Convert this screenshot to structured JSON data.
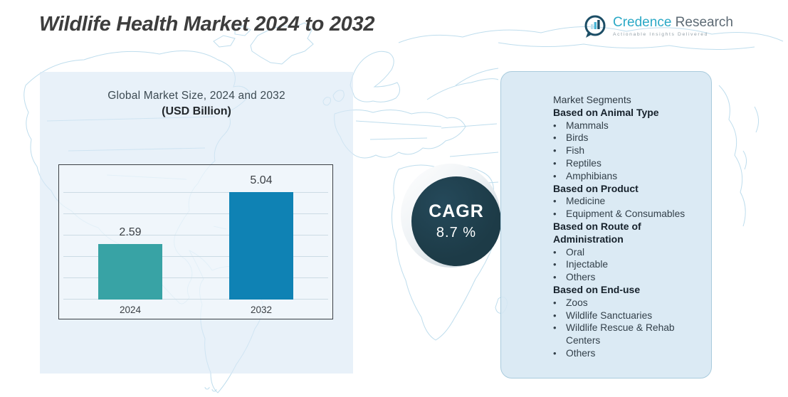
{
  "page": {
    "title": "Wildlife Health Market 2024 to 2032"
  },
  "logo": {
    "brand_primary": "Credence",
    "brand_secondary": "Research",
    "tagline": "Actionable Insights Delivered",
    "icon": "bar-chart-bubble-icon"
  },
  "chart_panel": {
    "title": "Global Market Size, 2024 and 2032",
    "subtitle": "(USD Billion)"
  },
  "chart_data": {
    "type": "bar",
    "title": "Global Market Size, 2024 and 2032 (USD Billion)",
    "unit": "USD Billion",
    "categories": [
      "2024",
      "2032"
    ],
    "values": [
      2.59,
      5.04
    ],
    "data_labels": [
      "2.59",
      "5.04"
    ],
    "bar_colors": [
      "#38a3a5",
      "#0f82b4"
    ],
    "ylim": [
      0,
      6
    ],
    "grid": true,
    "legend": false
  },
  "cagr": {
    "label": "CAGR",
    "value": "8.7 %"
  },
  "segments": {
    "title": "Market Segments",
    "groups": [
      {
        "heading": "Based on Animal Type",
        "items": [
          "Mammals",
          "Birds",
          "Fish",
          "Reptiles",
          "Amphibians"
        ]
      },
      {
        "heading": "Based on Product",
        "items": [
          "Medicine",
          "Equipment & Consumables"
        ]
      },
      {
        "heading": "Based on Route of Administration",
        "items": [
          "Oral",
          "Injectable",
          "Others"
        ]
      },
      {
        "heading": "Based on End-use",
        "items": [
          "Zoos",
          "Wildlife Sanctuaries",
          "Wildlife Rescue & Rehab Centers",
          "Others"
        ]
      }
    ]
  },
  "colors": {
    "bar_2024": "#38a3a5",
    "bar_2032": "#0f82b4",
    "cagr_circle": "#1d3b47",
    "panel_left": "#dae9f5",
    "panel_right": "#d6e7f3",
    "map_stroke": "#bedded",
    "title_text": "#3d3d3d",
    "logo_teal": "#2ba9c6",
    "logo_gray": "#5d6a74"
  }
}
